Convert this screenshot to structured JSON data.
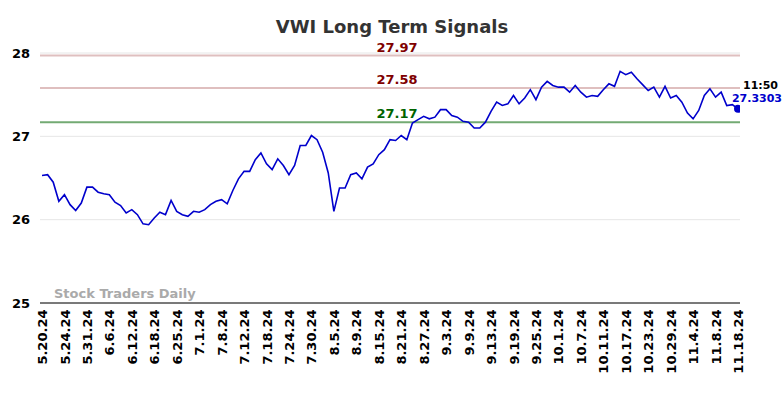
{
  "chart_data": {
    "type": "line",
    "title": "VWI Long Term Signals",
    "categories": [
      "5.20.24",
      null,
      null,
      null,
      "5.24.24",
      null,
      null,
      null,
      "5.31.24",
      null,
      null,
      null,
      "6.6.24",
      null,
      null,
      null,
      "6.12.24",
      null,
      null,
      null,
      "6.18.24",
      null,
      null,
      null,
      "6.25.24",
      null,
      null,
      null,
      "7.1.24",
      null,
      null,
      null,
      "7.8.24",
      null,
      null,
      null,
      "7.12.24",
      null,
      null,
      null,
      "7.18.24",
      null,
      null,
      null,
      "7.24.24",
      null,
      null,
      null,
      "7.30.24",
      null,
      null,
      null,
      "8.5.24",
      null,
      null,
      null,
      "8.9.24",
      null,
      null,
      null,
      "8.15.24",
      null,
      null,
      null,
      "8.21.24",
      null,
      null,
      null,
      "8.27.24",
      null,
      null,
      null,
      "9.3.24",
      null,
      null,
      null,
      "9.9.24",
      null,
      null,
      null,
      "9.13.24",
      null,
      null,
      null,
      "9.19.24",
      null,
      null,
      null,
      "9.25.24",
      null,
      null,
      null,
      "10.1.24",
      null,
      null,
      null,
      "10.7.24",
      null,
      null,
      null,
      "10.11.24",
      null,
      null,
      null,
      "10.17.24",
      null,
      null,
      null,
      "10.23.24",
      null,
      null,
      null,
      "10.29.24",
      null,
      null,
      null,
      "11.4.24",
      null,
      null,
      null,
      "11.8.24",
      null,
      null,
      null,
      "11.18.24"
    ],
    "series": [
      {
        "color": "#0000cc",
        "values": [
          26.53,
          26.54,
          26.45,
          26.22,
          26.3,
          26.18,
          26.11,
          26.2,
          26.39,
          26.39,
          26.33,
          26.31,
          26.3,
          26.21,
          26.17,
          26.08,
          26.12,
          26.06,
          25.95,
          25.94,
          26.02,
          26.09,
          26.06,
          26.23,
          26.1,
          26.06,
          26.04,
          26.1,
          26.09,
          26.12,
          26.18,
          26.22,
          26.24,
          26.19,
          26.35,
          26.49,
          26.58,
          26.58,
          26.72,
          26.8,
          26.67,
          26.6,
          26.73,
          26.65,
          26.54,
          26.65,
          26.89,
          26.89,
          27.01,
          26.96,
          26.81,
          26.56,
          26.1,
          26.38,
          26.38,
          26.54,
          26.56,
          26.49,
          26.63,
          26.67,
          26.78,
          26.84,
          26.96,
          26.95,
          27.01,
          26.96,
          27.16,
          27.2,
          27.24,
          27.21,
          27.23,
          27.32,
          27.32,
          27.25,
          27.23,
          27.18,
          27.17,
          27.1,
          27.1,
          27.17,
          27.3,
          27.41,
          27.37,
          27.39,
          27.49,
          27.39,
          27.46,
          27.56,
          27.44,
          27.59,
          27.66,
          27.61,
          27.59,
          27.59,
          27.53,
          27.61,
          27.53,
          27.47,
          27.49,
          27.48,
          27.56,
          27.63,
          27.6,
          27.78,
          27.74,
          27.77,
          27.69,
          27.62,
          27.55,
          27.59,
          27.47,
          27.6,
          27.46,
          27.49,
          27.41,
          27.28,
          27.21,
          27.31,
          27.49,
          27.57,
          27.47,
          27.53,
          27.37,
          27.38,
          27.3303
        ]
      }
    ],
    "ylim": [
      25,
      28
    ],
    "yticks": [
      25,
      26,
      27,
      28
    ],
    "grid": true,
    "levels": [
      {
        "value": 27.97,
        "color": "#800000"
      },
      {
        "value": 27.58,
        "color": "#800000"
      },
      {
        "value": 27.17,
        "color": "#006400"
      }
    ],
    "last_time": "11:50",
    "watermark": "Stock Traders Daily"
  }
}
